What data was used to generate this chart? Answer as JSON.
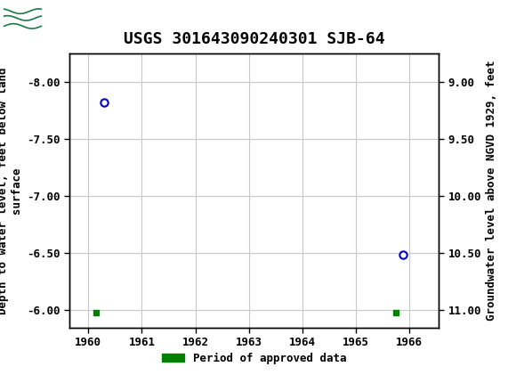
{
  "title": "USGS 301643090240301 SJB-64",
  "ylabel_left": "Depth to water level, feet below land\nsurface",
  "ylabel_right": "Groundwater level above NGVD 1929, feet",
  "ylim_left": [
    -8.25,
    -5.85
  ],
  "ylim_right": [
    8.75,
    11.15
  ],
  "xlim": [
    1959.65,
    1966.55
  ],
  "yticks_left": [
    -8.0,
    -7.5,
    -7.0,
    -6.5,
    -6.0
  ],
  "ytick_labels_left": [
    "-8.00",
    "-7.50",
    "-7.00",
    "-6.50",
    "-6.00"
  ],
  "yticks_right": [
    9.0,
    9.5,
    10.0,
    10.5,
    11.0
  ],
  "ytick_labels_right": [
    "9.00",
    "9.50",
    "10.00",
    "10.50",
    "11.00"
  ],
  "xticks": [
    1960,
    1961,
    1962,
    1963,
    1964,
    1965,
    1966
  ],
  "xtick_labels": [
    "1960",
    "1961",
    "1962",
    "1963",
    "1964",
    "1965",
    "1966"
  ],
  "data_points_x": [
    1960.3,
    1965.88
  ],
  "data_points_y": [
    -7.82,
    -6.49
  ],
  "bar_x1": 1960.15,
  "bar_x2": 1965.75,
  "bar_y": -5.98,
  "point_color": "#0000cc",
  "bar_color": "#008000",
  "header_color": "#1a7a4a",
  "background_color": "#ffffff",
  "grid_color": "#c8c8c8",
  "legend_label": "Period of approved data",
  "title_fontsize": 13,
  "tick_fontsize": 9,
  "label_fontsize": 9
}
